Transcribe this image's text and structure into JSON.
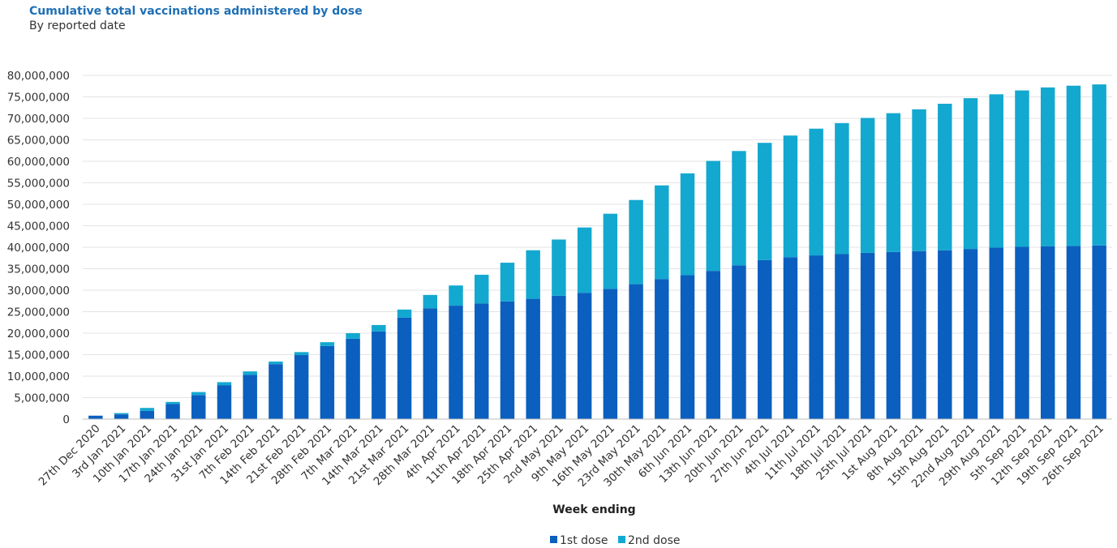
{
  "chart_data": {
    "type": "bar",
    "stacked": true,
    "title": "Cumulative total  vaccinations administered by dose",
    "subtitle": "By reported date",
    "xlabel": "Week ending",
    "ylabel": "",
    "ylim": [
      0,
      80000000
    ],
    "ytick_step": 5000000,
    "grid": true,
    "legend_position": "bottom-center",
    "categories": [
      "27th Dec 2020",
      "3rd Jan 2021",
      "10th Jan 2021",
      "17th Jan 2021",
      "24th Jan 2021",
      "31st Jan 2021",
      "7th Feb 2021",
      "14th Feb 2021",
      "21st Feb 2021",
      "28th Feb 2021",
      "7th Mar 2021",
      "14th Mar 2021",
      "21st Mar 2021",
      "28th Mar 2021",
      "4th Apr 2021",
      "11th Apr 2021",
      "18th Apr 2021",
      "25th Apr 2021",
      "2nd May 2021",
      "9th May 2021",
      "16th May 2021",
      "23rd May 2021",
      "30th May 2021",
      "6th Jun 2021",
      "13th Jun 2021",
      "20th Jun 2021",
      "27th Jun 2021",
      "4th Jul 2021",
      "11th Jul 2021",
      "18th Jul 2021",
      "25th Jul 2021",
      "1st Aug 2021",
      "8th Aug 2021",
      "15th Aug 2021",
      "22nd Aug 2021",
      "29th Aug 2021",
      "5th Sep 2021",
      "12th Sep 2021",
      "19th Sep 2021",
      "26th Sep 2021"
    ],
    "series": [
      {
        "name": "1st dose",
        "color": "#0b5fbf",
        "values": [
          800000,
          1100000,
          1900000,
          3500000,
          5600000,
          7900000,
          10300000,
          12800000,
          14900000,
          17000000,
          18700000,
          20400000,
          23600000,
          25800000,
          26400000,
          26900000,
          27400000,
          28000000,
          28700000,
          29400000,
          30300000,
          31400000,
          32600000,
          33500000,
          34500000,
          35800000,
          37000000,
          37700000,
          38100000,
          38400000,
          38700000,
          38900000,
          39100000,
          39300000,
          39600000,
          39900000,
          40100000,
          40200000,
          40300000,
          40400000
        ]
      },
      {
        "name": "2nd dose",
        "color": "#13a8cf",
        "values": [
          0,
          300000,
          700000,
          500000,
          700000,
          700000,
          800000,
          600000,
          700000,
          900000,
          1300000,
          1500000,
          1900000,
          3100000,
          4700000,
          6700000,
          9000000,
          11300000,
          13100000,
          15200000,
          17500000,
          19600000,
          21800000,
          23700000,
          25600000,
          26600000,
          27300000,
          28300000,
          29500000,
          30500000,
          31400000,
          32300000,
          33000000,
          34100000,
          35100000,
          35700000,
          36400000,
          37000000,
          37300000,
          37500000
        ]
      }
    ]
  }
}
